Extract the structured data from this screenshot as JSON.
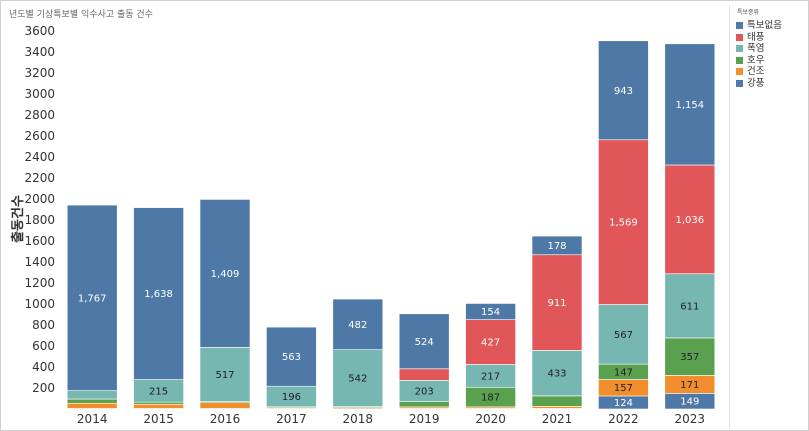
{
  "chart_data": {
    "type": "bar",
    "stacked": true,
    "title": "년도별 기상특보별 익수사고 출동 건수",
    "xlabel": "",
    "ylabel": "출동건수",
    "ylim": [
      0,
      3600
    ],
    "yticks": [
      200,
      400,
      600,
      800,
      1000,
      1200,
      1400,
      1600,
      1800,
      2000,
      2200,
      2400,
      2600,
      2800,
      3000,
      3200,
      3400,
      3600
    ],
    "categories": [
      "2014",
      "2015",
      "2016",
      "2017",
      "2018",
      "2019",
      "2020",
      "2021",
      "2022",
      "2023"
    ],
    "series": [
      {
        "name": "강풍",
        "color": "#4e79a7",
        "values": [
          5,
          5,
          5,
          3,
          3,
          5,
          5,
          5,
          124,
          149
        ],
        "labels": [
          "",
          "",
          "",
          "",
          "",
          "",
          "",
          "",
          "124",
          "149"
        ]
      },
      {
        "name": "건조",
        "color": "#f28e2b",
        "values": [
          50,
          40,
          55,
          8,
          10,
          15,
          15,
          20,
          157,
          171
        ],
        "labels": [
          "",
          "",
          "",
          "",
          "",
          "",
          "",
          "",
          "157",
          "171"
        ]
      },
      {
        "name": "호우",
        "color": "#59a14f",
        "values": [
          40,
          20,
          10,
          10,
          10,
          50,
          187,
          100,
          147,
          357
        ],
        "labels": [
          "",
          "",
          "",
          "",
          "",
          "",
          "187",
          "",
          "147",
          "357"
        ]
      },
      {
        "name": "폭염",
        "color": "#76b7b2",
        "values": [
          80,
          215,
          517,
          196,
          542,
          203,
          217,
          433,
          567,
          611
        ],
        "labels": [
          "",
          "215",
          "517",
          "196",
          "542",
          "203",
          "217",
          "433",
          "567",
          "611"
        ]
      },
      {
        "name": "태풍",
        "color": "#e15759",
        "values": [
          0,
          0,
          0,
          0,
          0,
          110,
          427,
          911,
          1569,
          1036
        ],
        "labels": [
          "",
          "",
          "",
          "",
          "",
          "",
          "427",
          "911",
          "1,569",
          "1,036"
        ]
      },
      {
        "name": "특보없음",
        "color": "#4e79a7",
        "values": [
          1767,
          1638,
          1409,
          563,
          482,
          524,
          154,
          178,
          943,
          1154
        ],
        "labels": [
          "1,767",
          "1,638",
          "1,409",
          "563",
          "482",
          "524",
          "154",
          "178",
          "943",
          "1,154"
        ]
      }
    ],
    "legend": {
      "title": "특보종류",
      "position": "right",
      "items": [
        {
          "label": "특보없음",
          "color": "#4e79a7"
        },
        {
          "label": "태풍",
          "color": "#e15759"
        },
        {
          "label": "폭염",
          "color": "#76b7b2"
        },
        {
          "label": "호우",
          "color": "#59a14f"
        },
        {
          "label": "건조",
          "color": "#f28e2b"
        },
        {
          "label": "강풍",
          "color": "#4e79a7"
        }
      ]
    },
    "grid": false
  }
}
